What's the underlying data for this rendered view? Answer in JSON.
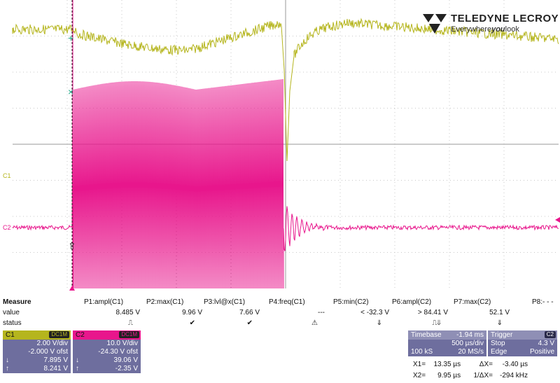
{
  "brand": {
    "name": "TELEDYNE LECROY",
    "tagline_pre": "Everywhere",
    "tagline_bold": "you",
    "tagline_post": "look"
  },
  "traces": {
    "c1_label": "C1",
    "c2_label": "C2",
    "c1_color": "#b5b51d",
    "c2_color": "#e8168c"
  },
  "measure": {
    "header": "Measure",
    "row_value_label": "value",
    "row_status_label": "status",
    "params": [
      {
        "name": "P1:ampl(C1)",
        "value": "8.485 V",
        "status": "⎍"
      },
      {
        "name": "P2:max(C1)",
        "value": "9.96 V",
        "status": "✔"
      },
      {
        "name": "P3:lvl@x(C1)",
        "value": "7.66 V",
        "status": "✔"
      },
      {
        "name": "P4:freq(C1)",
        "value": "---",
        "status": "⚠"
      },
      {
        "name": "P5:min(C2)",
        "value": "< -32.3 V",
        "status": "⇓"
      },
      {
        "name": "P6:ampl(C2)",
        "value": "> 84.41 V",
        "status": "⎍⇓"
      },
      {
        "name": "P7:max(C2)",
        "value": "52.1 V",
        "status": "⇓"
      },
      {
        "name": "P8:- - -",
        "value": "",
        "status": ""
      }
    ]
  },
  "c1_box": {
    "title": "C1",
    "coupling": "DC1M",
    "vdiv": "2.00 V/div",
    "offset": "-2.000 V ofst",
    "cursor1": "7.895 V",
    "cursor2": "8.241 V",
    "c1_sym": "↓",
    "c2_sym": "↑"
  },
  "c2_box": {
    "title": "C2",
    "coupling": "DC1M",
    "vdiv": "10.0 V/div",
    "offset": "-24.30 V ofst",
    "cursor1": "39.06 V",
    "cursor2": "-2.35 V",
    "c1_sym": "↓",
    "c2_sym": "↑"
  },
  "timebase": {
    "title": "Timebase",
    "delay": "-1.94 ms",
    "tdiv": "500 µs/div",
    "samples": "100 kS",
    "rate": "20 MS/s"
  },
  "trigger": {
    "title": "Trigger",
    "source": "C2",
    "mode": "Stop",
    "level": "4.3 V",
    "type": "Edge",
    "slope": "Positive"
  },
  "cursors": {
    "x1_label": "X1=",
    "x1": "13.35 µs",
    "x2_label": "X2=",
    "x2": "9.95 µs",
    "dx_label": "ΔX=",
    "dx": "-3.40 µs",
    "inv_label": "1/ΔX=",
    "inv": "-294 kHz"
  }
}
